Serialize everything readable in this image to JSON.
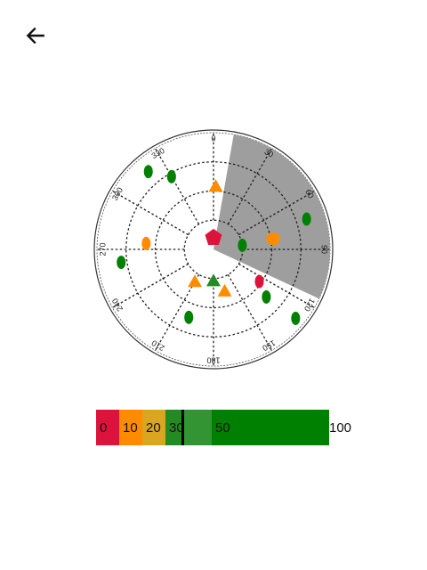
{
  "header": {
    "back_icon": "arrow-left-icon"
  },
  "polar": {
    "angle_labels": [
      "0",
      "30",
      "60",
      "90",
      "120",
      "150",
      "180",
      "210",
      "240",
      "270",
      "300",
      "330"
    ],
    "sector": {
      "from_deg": 10,
      "to_deg": 115,
      "color": "#9e9e9e"
    },
    "markers": [
      {
        "shape": "pentagon",
        "color": "#dc143c",
        "bearing": 0,
        "range": 0.1
      },
      {
        "shape": "triangle",
        "color": "#228b22",
        "bearing": 180,
        "range": 0.27
      },
      {
        "shape": "triangle",
        "color": "#ff8c00",
        "bearing": 210,
        "range": 0.32
      },
      {
        "shape": "triangle",
        "color": "#ff8c00",
        "bearing": 165,
        "range": 0.37
      },
      {
        "shape": "triangle",
        "color": "#ff8c00",
        "bearing": 2,
        "range": 0.54
      },
      {
        "shape": "ellipse",
        "color": "#ff8c00",
        "bearing": 275,
        "range": 0.58
      },
      {
        "shape": "ellipse",
        "color": "#ff8c00",
        "bearing": 80,
        "range": 0.52
      },
      {
        "shape": "ellipse",
        "color": "#008000",
        "bearing": 82,
        "range": 0.25
      },
      {
        "shape": "ellipse",
        "color": "#008000",
        "bearing": 72,
        "range": 0.84
      },
      {
        "shape": "ellipse",
        "color": "#008000",
        "bearing": 330,
        "range": 0.72
      },
      {
        "shape": "ellipse",
        "color": "#008000",
        "bearing": 320,
        "range": 0.87
      },
      {
        "shape": "ellipse",
        "color": "#008000",
        "bearing": 262,
        "range": 0.8
      },
      {
        "shape": "ellipse",
        "color": "#008000",
        "bearing": 200,
        "range": 0.62
      },
      {
        "shape": "ellipse",
        "color": "#008000",
        "bearing": 132,
        "range": 0.61
      },
      {
        "shape": "ellipse",
        "color": "#008000",
        "bearing": 130,
        "range": 0.92
      },
      {
        "shape": "ellipse",
        "color": "#dc143c",
        "bearing": 125,
        "range": 0.48
      }
    ]
  },
  "scale": {
    "segments": [
      {
        "label": "0",
        "color": "#dc143c",
        "flex": 26
      },
      {
        "label": "10",
        "color": "#ff8c00",
        "flex": 26
      },
      {
        "label": "20",
        "color": "#daa520",
        "flex": 26
      },
      {
        "label": "30",
        "color": "#228b22",
        "flex": 52
      },
      {
        "label": "50",
        "color": "#008000",
        "flex": 132
      },
      {
        "label": "100",
        "color": "#008000",
        "flex": 0
      }
    ],
    "current_value": 35
  }
}
